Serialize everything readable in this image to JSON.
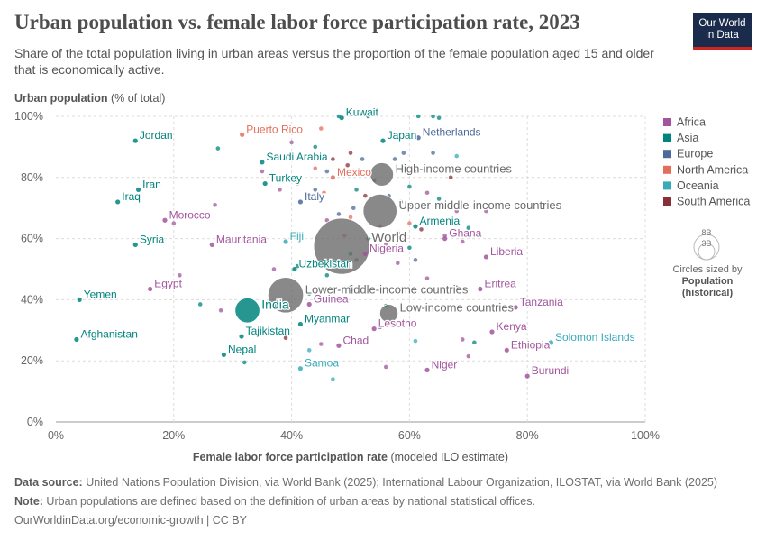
{
  "title": "Urban population vs. female labor force participation rate, 2023",
  "subtitle": "Share of the total population living in urban areas versus the proportion of the female population aged 15 and older that is economically active.",
  "logo": {
    "line1": "Our World",
    "line2": "in Data"
  },
  "footer": {
    "source_label": "Data source:",
    "source_text": " United Nations Population Division, via World Bank (2025); International Labour Organization, ILOSTAT, via World Bank (2025)",
    "note_label": "Note:",
    "note_text": " Urban populations are defined based on the definition of urban areas by national statistical offices.",
    "url": "OurWorldinData.org/economic-growth | CC BY"
  },
  "colors": {
    "Africa": "#a2559c",
    "Asia": "#00847e",
    "Europe": "#4c6a9c",
    "North America": "#e56e5a",
    "Oceania": "#38aaba",
    "South America": "#883039",
    "Aggregate": "#6b6b6b"
  },
  "chart_data": {
    "type": "scatter",
    "title": "Urban population vs. female labor force participation rate, 2023",
    "xlabel_bold": "Female labor force participation rate",
    "xlabel_rest": " (modeled ILO estimate)",
    "ylabel_bold": "Urban population",
    "ylabel_rest": " (% of total)",
    "xlim": [
      0,
      100
    ],
    "ylim": [
      0,
      100
    ],
    "xticks": [
      0,
      20,
      40,
      60,
      80,
      100
    ],
    "yticks": [
      0,
      20,
      40,
      60,
      80,
      100
    ],
    "x_tick_labels": [
      "0%",
      "20%",
      "40%",
      "60%",
      "80%",
      "100%"
    ],
    "y_tick_labels": [
      "0%",
      "20%",
      "40%",
      "60%",
      "80%",
      "100%"
    ],
    "legend": {
      "entries": [
        "Africa",
        "Asia",
        "Europe",
        "North America",
        "Oceania",
        "South America"
      ],
      "size_line1": "8B",
      "size_line2": "3B",
      "size_caption": "Circles sized by",
      "size_bold1": "Population",
      "size_bold2": "(historical)"
    },
    "labeled_points": [
      {
        "name": "Jordan",
        "region": "Asia",
        "x": 13.5,
        "y": 92
      },
      {
        "name": "Puerto Rico",
        "region": "North America",
        "x": 31.6,
        "y": 94
      },
      {
        "name": "Kuwait",
        "region": "Asia",
        "x": 48.5,
        "y": 99.5
      },
      {
        "name": "Netherlands",
        "region": "Europe",
        "x": 61.5,
        "y": 93
      },
      {
        "name": "Japan",
        "region": "Asia",
        "x": 55.5,
        "y": 92
      },
      {
        "name": "Saudi Arabia",
        "region": "Asia",
        "x": 35,
        "y": 85
      },
      {
        "name": "Mexico",
        "region": "North America",
        "x": 47,
        "y": 80
      },
      {
        "name": "High-income countries",
        "region": "Aggregate",
        "x": 55.3,
        "y": 81,
        "pop": 1.25
      },
      {
        "name": "Iran",
        "region": "Asia",
        "x": 14,
        "y": 76
      },
      {
        "name": "Turkey",
        "region": "Asia",
        "x": 35.5,
        "y": 78
      },
      {
        "name": "Iraq",
        "region": "Asia",
        "x": 10.5,
        "y": 72
      },
      {
        "name": "Italy",
        "region": "Europe",
        "x": 41.5,
        "y": 72
      },
      {
        "name": "Upper-middle-income countries",
        "region": "Aggregate",
        "x": 55,
        "y": 69,
        "pop": 2.8
      },
      {
        "name": "Morocco",
        "region": "Africa",
        "x": 18.5,
        "y": 66
      },
      {
        "name": "Armenia",
        "region": "Asia",
        "x": 61,
        "y": 64
      },
      {
        "name": "World",
        "region": "Aggregate",
        "x": 48.5,
        "y": 57.5,
        "pop": 8.1
      },
      {
        "name": "Syria",
        "region": "Asia",
        "x": 13.5,
        "y": 58
      },
      {
        "name": "Mauritania",
        "region": "Africa",
        "x": 26.5,
        "y": 58
      },
      {
        "name": "Fiji",
        "region": "Oceania",
        "x": 39,
        "y": 59
      },
      {
        "name": "Ghana",
        "region": "Africa",
        "x": 66,
        "y": 60
      },
      {
        "name": "Nigeria",
        "region": "Africa",
        "x": 52.5,
        "y": 55
      },
      {
        "name": "Liberia",
        "region": "Africa",
        "x": 73,
        "y": 54
      },
      {
        "name": "Uzbekistan",
        "region": "Asia",
        "x": 40.5,
        "y": 50
      },
      {
        "name": "Egypt",
        "region": "Africa",
        "x": 16,
        "y": 43.5
      },
      {
        "name": "Lower-middle-income countries",
        "region": "Aggregate",
        "x": 39,
        "y": 41.5,
        "pop": 3.1
      },
      {
        "name": "Eritrea",
        "region": "Africa",
        "x": 72,
        "y": 43.5
      },
      {
        "name": "Yemen",
        "region": "Asia",
        "x": 4,
        "y": 40
      },
      {
        "name": "India",
        "region": "Asia",
        "x": 32.5,
        "y": 36.5,
        "pop": 1.43
      },
      {
        "name": "Guinea",
        "region": "Africa",
        "x": 43,
        "y": 38.5
      },
      {
        "name": "Low-income countries",
        "region": "Aggregate",
        "x": 56.5,
        "y": 35.5,
        "pop": 0.72
      },
      {
        "name": "Tanzania",
        "region": "Africa",
        "x": 78,
        "y": 37.5
      },
      {
        "name": "Myanmar",
        "region": "Asia",
        "x": 41.5,
        "y": 32
      },
      {
        "name": "Lesotho",
        "region": "Africa",
        "x": 54,
        "y": 30.5
      },
      {
        "name": "Kenya",
        "region": "Africa",
        "x": 74,
        "y": 29.5
      },
      {
        "name": "Tajikistan",
        "region": "Asia",
        "x": 31.5,
        "y": 28
      },
      {
        "name": "Afghanistan",
        "region": "Asia",
        "x": 3.5,
        "y": 27
      },
      {
        "name": "Solomon Islands",
        "region": "Oceania",
        "x": 84,
        "y": 26
      },
      {
        "name": "Chad",
        "region": "Africa",
        "x": 48,
        "y": 25
      },
      {
        "name": "Ethiopia",
        "region": "Africa",
        "x": 76.5,
        "y": 23.5
      },
      {
        "name": "Nepal",
        "region": "Asia",
        "x": 28.5,
        "y": 22
      },
      {
        "name": "Samoa",
        "region": "Oceania",
        "x": 41.5,
        "y": 17.5
      },
      {
        "name": "Niger",
        "region": "Africa",
        "x": 63,
        "y": 17
      },
      {
        "name": "Burundi",
        "region": "Africa",
        "x": 80,
        "y": 15
      }
    ],
    "other_points": [
      {
        "region": "Asia",
        "x": 48,
        "y": 100
      },
      {
        "region": "Asia",
        "x": 53,
        "y": 100
      },
      {
        "region": "Asia",
        "x": 61.5,
        "y": 100
      },
      {
        "region": "Asia",
        "x": 64,
        "y": 100
      },
      {
        "region": "Asia",
        "x": 65,
        "y": 99.5
      },
      {
        "region": "Asia",
        "x": 27.5,
        "y": 89.5
      },
      {
        "region": "Africa",
        "x": 40,
        "y": 91.5
      },
      {
        "region": "North America",
        "x": 45,
        "y": 96
      },
      {
        "region": "South America",
        "x": 50,
        "y": 88
      },
      {
        "region": "Europe",
        "x": 57.5,
        "y": 86
      },
      {
        "region": "Europe",
        "x": 59,
        "y": 88
      },
      {
        "region": "Oceania",
        "x": 68,
        "y": 87
      },
      {
        "region": "Asia",
        "x": 44,
        "y": 90
      },
      {
        "region": "Europe",
        "x": 64,
        "y": 88
      },
      {
        "region": "South America",
        "x": 47,
        "y": 86
      },
      {
        "region": "North America",
        "x": 44,
        "y": 83
      },
      {
        "region": "Europe",
        "x": 46,
        "y": 82
      },
      {
        "region": "South America",
        "x": 49.5,
        "y": 84
      },
      {
        "region": "Europe",
        "x": 52,
        "y": 86
      },
      {
        "region": "Europe",
        "x": 54,
        "y": 79
      },
      {
        "region": "North America",
        "x": 61,
        "y": 82
      },
      {
        "region": "South America",
        "x": 67,
        "y": 80
      },
      {
        "region": "Africa",
        "x": 35,
        "y": 82
      },
      {
        "region": "North America",
        "x": 41,
        "y": 78
      },
      {
        "region": "Europe",
        "x": 44,
        "y": 76
      },
      {
        "region": "North America",
        "x": 45.5,
        "y": 75
      },
      {
        "region": "Africa",
        "x": 38,
        "y": 76
      },
      {
        "region": "Asia",
        "x": 51,
        "y": 76
      },
      {
        "region": "South America",
        "x": 52.5,
        "y": 74
      },
      {
        "region": "Europe",
        "x": 56.5,
        "y": 74
      },
      {
        "region": "Europe",
        "x": 58.5,
        "y": 72
      },
      {
        "region": "Asia",
        "x": 60,
        "y": 77
      },
      {
        "region": "Africa",
        "x": 63,
        "y": 75
      },
      {
        "region": "Asia",
        "x": 65,
        "y": 73
      },
      {
        "region": "Europe",
        "x": 50.5,
        "y": 70
      },
      {
        "region": "North America",
        "x": 50,
        "y": 67
      },
      {
        "region": "Africa",
        "x": 46,
        "y": 66
      },
      {
        "region": "Europe",
        "x": 48,
        "y": 68
      },
      {
        "region": "South America",
        "x": 60,
        "y": 71
      },
      {
        "region": "Africa",
        "x": 68,
        "y": 69
      },
      {
        "region": "Africa",
        "x": 73,
        "y": 69
      },
      {
        "region": "Africa",
        "x": 27,
        "y": 71
      },
      {
        "region": "North America",
        "x": 60,
        "y": 65
      },
      {
        "region": "South America",
        "x": 62,
        "y": 63
      },
      {
        "region": "Europe",
        "x": 58,
        "y": 62
      },
      {
        "region": "Asia",
        "x": 70,
        "y": 63.5
      },
      {
        "region": "Africa",
        "x": 55,
        "y": 64
      },
      {
        "region": "Africa",
        "x": 20,
        "y": 65
      },
      {
        "region": "Asia",
        "x": 53,
        "y": 60
      },
      {
        "region": "Africa",
        "x": 56,
        "y": 58
      },
      {
        "region": "Asia",
        "x": 60,
        "y": 57
      },
      {
        "region": "Africa",
        "x": 66,
        "y": 61
      },
      {
        "region": "Africa",
        "x": 69,
        "y": 59
      },
      {
        "region": "North America",
        "x": 49,
        "y": 61
      },
      {
        "region": "Africa",
        "x": 51,
        "y": 53
      },
      {
        "region": "Africa",
        "x": 58,
        "y": 52
      },
      {
        "region": "Europe",
        "x": 61,
        "y": 53
      },
      {
        "region": "Africa",
        "x": 37,
        "y": 50
      },
      {
        "region": "Asia",
        "x": 41,
        "y": 51
      },
      {
        "region": "Asia",
        "x": 50,
        "y": 55
      },
      {
        "region": "Africa",
        "x": 21,
        "y": 48
      },
      {
        "region": "Asia",
        "x": 46,
        "y": 48
      },
      {
        "region": "Africa",
        "x": 63,
        "y": 47
      },
      {
        "region": "Africa",
        "x": 68,
        "y": 44
      },
      {
        "region": "Asia",
        "x": 50,
        "y": 44
      },
      {
        "region": "Asia",
        "x": 24.5,
        "y": 38.5
      },
      {
        "region": "Africa",
        "x": 28,
        "y": 36.5
      },
      {
        "region": "Asia",
        "x": 43,
        "y": 42
      },
      {
        "region": "Asia",
        "x": 56,
        "y": 38
      },
      {
        "region": "Africa",
        "x": 49,
        "y": 33
      },
      {
        "region": "Africa",
        "x": 55,
        "y": 31
      },
      {
        "region": "Asia",
        "x": 37,
        "y": 29
      },
      {
        "region": "Oceania",
        "x": 61,
        "y": 26.5
      },
      {
        "region": "Africa",
        "x": 69,
        "y": 27
      },
      {
        "region": "Asia",
        "x": 71,
        "y": 26
      },
      {
        "region": "Africa",
        "x": 45,
        "y": 25.5
      },
      {
        "region": "Oceania",
        "x": 43,
        "y": 23.5
      },
      {
        "region": "Africa",
        "x": 70,
        "y": 21.5
      },
      {
        "region": "South America",
        "x": 39,
        "y": 27.5
      },
      {
        "region": "Asia",
        "x": 32,
        "y": 19.5
      },
      {
        "region": "Africa",
        "x": 56,
        "y": 18
      },
      {
        "region": "Oceania",
        "x": 47,
        "y": 14
      }
    ]
  }
}
